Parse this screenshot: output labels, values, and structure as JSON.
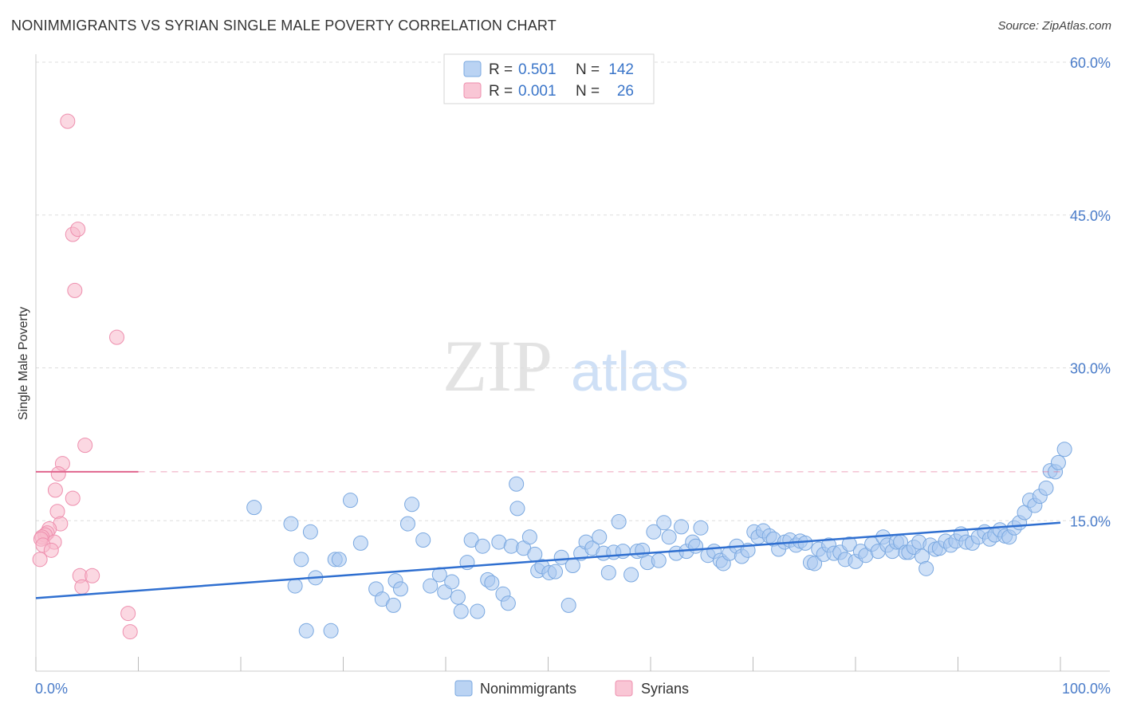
{
  "title": "NONIMMIGRANTS VS SYRIAN SINGLE MALE POVERTY CORRELATION CHART",
  "source": "Source: ZipAtlas.com",
  "watermark": {
    "zip": "ZIP",
    "atlas": "atlas"
  },
  "colors": {
    "blue_fill": "#a9c8f0",
    "blue_stroke": "#7aa8e0",
    "blue_line": "#2f6fd0",
    "pink_fill": "#f7b8cb",
    "pink_stroke": "#ee8fae",
    "pink_line": "#e0658e",
    "grid": "#dddddd",
    "axis_text": "#4a7cc9"
  },
  "legend": {
    "r_label": "R =",
    "n_label": "N =",
    "rows": [
      {
        "series": "blue",
        "r": "0.501",
        "n": "142"
      },
      {
        "series": "pink",
        "r": "0.001",
        "n": "26"
      }
    ]
  },
  "bottom_legend": [
    "Nonimmigrants",
    "Syrians"
  ],
  "chart_data": {
    "type": "scatter",
    "title": "NONIMMIGRANTS VS SYRIAN SINGLE MALE POVERTY CORRELATION CHART",
    "xlabel": "",
    "ylabel": "Single Male Poverty",
    "xlim": [
      0,
      100
    ],
    "ylim": [
      0,
      60
    ],
    "x_tick_labels": [
      "0.0%",
      "100.0%"
    ],
    "y_ticks": [
      15,
      30,
      45,
      60
    ],
    "y_tick_labels": [
      "15.0%",
      "30.0%",
      "45.0%",
      "60.0%"
    ],
    "grid": true,
    "series": [
      {
        "name": "Nonimmigrants",
        "r": 0.501,
        "n": 142,
        "trend": {
          "x": [
            0,
            100
          ],
          "y": [
            7.4,
            14.8
          ]
        },
        "points": [
          [
            21.3,
            16.3
          ],
          [
            24.9,
            14.7
          ],
          [
            25.3,
            8.6
          ],
          [
            25.9,
            11.2
          ],
          [
            26.4,
            4.2
          ],
          [
            26.8,
            13.9
          ],
          [
            27.3,
            9.4
          ],
          [
            28.8,
            4.2
          ],
          [
            29.2,
            11.2
          ],
          [
            29.6,
            11.2
          ],
          [
            30.7,
            17.0
          ],
          [
            31.7,
            12.8
          ],
          [
            33.2,
            8.3
          ],
          [
            33.8,
            7.3
          ],
          [
            34.9,
            6.7
          ],
          [
            35.1,
            9.1
          ],
          [
            35.6,
            8.3
          ],
          [
            36.3,
            14.7
          ],
          [
            36.7,
            16.6
          ],
          [
            37.8,
            13.1
          ],
          [
            38.5,
            8.6
          ],
          [
            39.4,
            9.7
          ],
          [
            39.9,
            8.0
          ],
          [
            40.6,
            9.0
          ],
          [
            41.2,
            7.5
          ],
          [
            41.5,
            6.1
          ],
          [
            42.1,
            10.9
          ],
          [
            42.5,
            13.1
          ],
          [
            43.1,
            6.1
          ],
          [
            43.6,
            12.5
          ],
          [
            44.1,
            9.2
          ],
          [
            44.5,
            8.9
          ],
          [
            45.2,
            12.9
          ],
          [
            45.6,
            7.8
          ],
          [
            46.1,
            6.9
          ],
          [
            46.4,
            12.5
          ],
          [
            46.9,
            18.6
          ],
          [
            47.0,
            16.2
          ],
          [
            47.6,
            12.3
          ],
          [
            48.2,
            13.4
          ],
          [
            48.7,
            11.7
          ],
          [
            49.0,
            10.1
          ],
          [
            49.4,
            10.5
          ],
          [
            50.1,
            9.9
          ],
          [
            50.7,
            10.0
          ],
          [
            51.3,
            11.4
          ],
          [
            52.0,
            6.7
          ],
          [
            52.4,
            10.6
          ],
          [
            53.2,
            11.8
          ],
          [
            53.7,
            12.9
          ],
          [
            54.3,
            12.3
          ],
          [
            55.0,
            13.4
          ],
          [
            55.4,
            11.8
          ],
          [
            55.9,
            9.9
          ],
          [
            56.4,
            11.9
          ],
          [
            56.9,
            14.9
          ],
          [
            57.3,
            12.0
          ],
          [
            58.1,
            9.7
          ],
          [
            58.7,
            12.0
          ],
          [
            59.2,
            12.1
          ],
          [
            59.7,
            10.9
          ],
          [
            60.3,
            13.9
          ],
          [
            60.8,
            11.1
          ],
          [
            61.3,
            14.8
          ],
          [
            61.8,
            13.4
          ],
          [
            62.5,
            11.8
          ],
          [
            63.0,
            14.4
          ],
          [
            63.5,
            12.0
          ],
          [
            64.1,
            12.9
          ],
          [
            64.4,
            12.5
          ],
          [
            64.9,
            14.3
          ],
          [
            65.6,
            11.6
          ],
          [
            66.2,
            12.0
          ],
          [
            66.8,
            11.1
          ],
          [
            67.1,
            10.8
          ],
          [
            67.7,
            11.8
          ],
          [
            68.4,
            12.5
          ],
          [
            68.9,
            11.5
          ],
          [
            69.5,
            12.1
          ],
          [
            70.1,
            13.9
          ],
          [
            70.5,
            13.4
          ],
          [
            71.0,
            14.0
          ],
          [
            71.6,
            13.5
          ],
          [
            72.0,
            13.2
          ],
          [
            72.5,
            12.2
          ],
          [
            73.1,
            12.9
          ],
          [
            73.6,
            13.1
          ],
          [
            74.2,
            12.6
          ],
          [
            74.6,
            13.0
          ],
          [
            75.1,
            12.8
          ],
          [
            75.6,
            10.9
          ],
          [
            76.0,
            10.8
          ],
          [
            76.4,
            12.2
          ],
          [
            76.9,
            11.7
          ],
          [
            77.4,
            12.6
          ],
          [
            77.9,
            11.8
          ],
          [
            78.5,
            11.9
          ],
          [
            79.0,
            11.2
          ],
          [
            79.4,
            12.7
          ],
          [
            80.0,
            11.0
          ],
          [
            80.5,
            12.0
          ],
          [
            81.0,
            11.6
          ],
          [
            81.6,
            12.7
          ],
          [
            82.2,
            12.0
          ],
          [
            82.7,
            13.4
          ],
          [
            83.1,
            12.6
          ],
          [
            83.6,
            12.0
          ],
          [
            84.0,
            12.9
          ],
          [
            84.4,
            12.9
          ],
          [
            84.9,
            11.9
          ],
          [
            85.2,
            11.9
          ],
          [
            85.7,
            12.4
          ],
          [
            86.2,
            12.9
          ],
          [
            86.5,
            11.5
          ],
          [
            86.9,
            10.3
          ],
          [
            87.3,
            12.6
          ],
          [
            87.8,
            12.2
          ],
          [
            88.2,
            12.3
          ],
          [
            88.8,
            13.0
          ],
          [
            89.3,
            12.6
          ],
          [
            89.8,
            13.0
          ],
          [
            90.3,
            13.7
          ],
          [
            90.8,
            12.9
          ],
          [
            91.4,
            12.8
          ],
          [
            92.0,
            13.4
          ],
          [
            92.6,
            13.9
          ],
          [
            93.1,
            13.2
          ],
          [
            93.6,
            13.6
          ],
          [
            94.1,
            14.1
          ],
          [
            94.6,
            13.5
          ],
          [
            95.0,
            13.4
          ],
          [
            95.5,
            14.3
          ],
          [
            96.0,
            14.8
          ],
          [
            96.5,
            15.8
          ],
          [
            97.0,
            17.0
          ],
          [
            97.5,
            16.5
          ],
          [
            98.0,
            17.4
          ],
          [
            98.6,
            18.2
          ],
          [
            99.0,
            19.9
          ],
          [
            99.5,
            19.8
          ],
          [
            99.8,
            20.7
          ],
          [
            100.4,
            22.0
          ]
        ]
      },
      {
        "name": "Syrians",
        "r": 0.001,
        "n": 26,
        "trend": {
          "x": [
            0,
            10
          ],
          "y": [
            19.8,
            19.8
          ]
        },
        "points": [
          [
            3.1,
            54.2
          ],
          [
            3.6,
            43.1
          ],
          [
            4.1,
            43.6
          ],
          [
            3.8,
            37.6
          ],
          [
            7.9,
            33.0
          ],
          [
            4.8,
            22.4
          ],
          [
            2.6,
            20.6
          ],
          [
            2.2,
            19.6
          ],
          [
            1.9,
            18.0
          ],
          [
            3.6,
            17.2
          ],
          [
            2.1,
            15.9
          ],
          [
            2.4,
            14.7
          ],
          [
            1.3,
            14.2
          ],
          [
            1.1,
            13.8
          ],
          [
            0.9,
            13.6
          ],
          [
            0.6,
            13.4
          ],
          [
            0.5,
            13.2
          ],
          [
            1.8,
            12.9
          ],
          [
            0.7,
            12.6
          ],
          [
            1.5,
            12.1
          ],
          [
            0.4,
            11.2
          ],
          [
            4.3,
            9.6
          ],
          [
            5.5,
            9.6
          ],
          [
            4.5,
            8.5
          ],
          [
            9.0,
            5.9
          ],
          [
            9.2,
            4.1
          ]
        ]
      }
    ]
  }
}
